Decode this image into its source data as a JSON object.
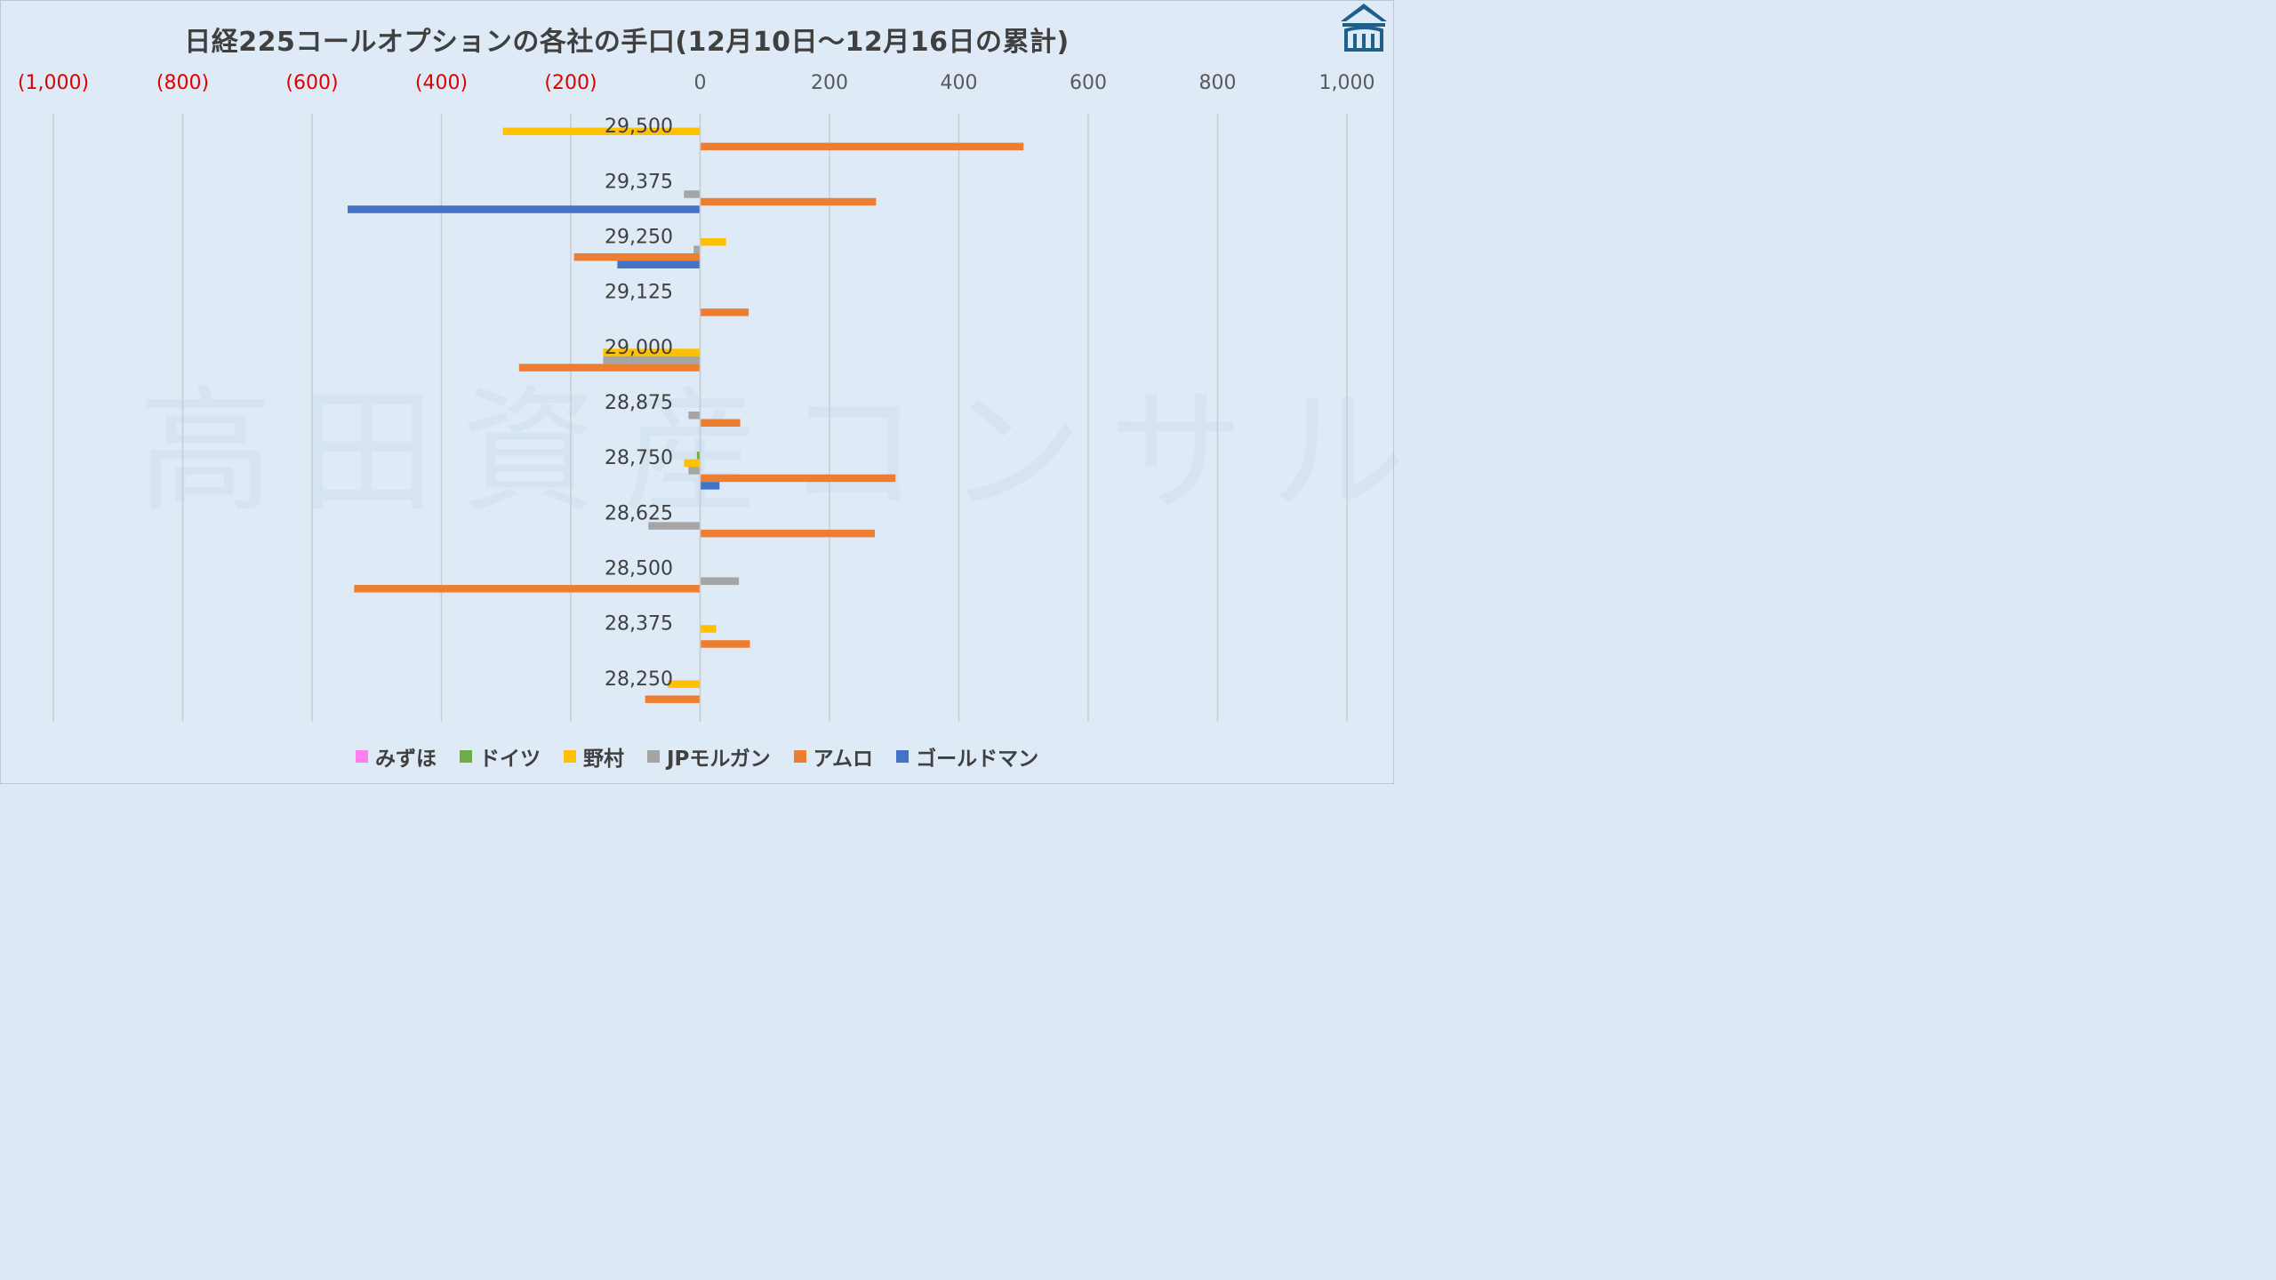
{
  "title": "日経225コールオプションの各社の手口(12月10日～12月16日の累計)",
  "watermark": "高田資産コンサル",
  "chart_data": {
    "type": "bar",
    "orientation": "horizontal",
    "title": "日経225コールオプションの各社の手口(12月10日～12月16日の累計)",
    "xlim": [
      -1000,
      1000
    ],
    "x_ticks": [
      -1000,
      -800,
      -600,
      -400,
      -200,
      0,
      200,
      400,
      600,
      800,
      1000
    ],
    "x_tick_labels": [
      "(1,000)",
      "(800)",
      "(600)",
      "(400)",
      "(200)",
      "0",
      "200",
      "400",
      "600",
      "800",
      "1,000"
    ],
    "axis_position": "top",
    "grid": true,
    "legend_position": "bottom",
    "categories": [
      "29,500",
      "29,375",
      "29,250",
      "29,125",
      "29,000",
      "28,875",
      "28,750",
      "28,625",
      "28,500",
      "28,375",
      "28,250"
    ],
    "series": [
      {
        "name": "みずほ",
        "color": "#ff7ff0",
        "values": [
          0,
          0,
          0,
          0,
          0,
          0,
          0,
          0,
          0,
          0,
          0
        ]
      },
      {
        "name": "ドイツ",
        "color": "#70ad47",
        "values": [
          0,
          0,
          0,
          0,
          0,
          0,
          -5,
          0,
          0,
          0,
          0
        ]
      },
      {
        "name": "野村",
        "color": "#ffc000",
        "values": [
          -305,
          0,
          40,
          0,
          -150,
          0,
          -25,
          0,
          0,
          25,
          -50
        ]
      },
      {
        "name": "JPモルガン",
        "color": "#a5a5a5",
        "values": [
          0,
          -25,
          -10,
          0,
          -150,
          -18,
          -18,
          -80,
          60,
          0,
          0
        ]
      },
      {
        "name": "アムロ",
        "color": "#ed7d31",
        "values": [
          500,
          272,
          -195,
          75,
          -280,
          62,
          302,
          270,
          -535,
          77,
          -85
        ]
      },
      {
        "name": "ゴールドマン",
        "color": "#4472c4",
        "values": [
          0,
          -545,
          -128,
          0,
          0,
          0,
          30,
          0,
          0,
          0,
          0
        ]
      }
    ]
  }
}
